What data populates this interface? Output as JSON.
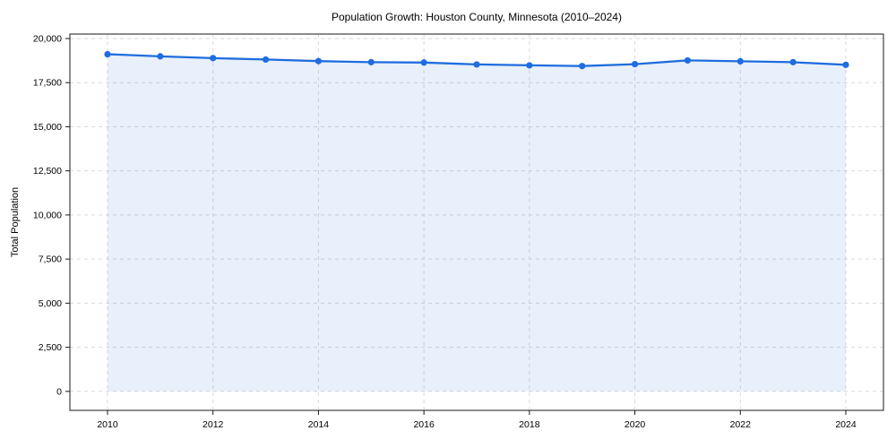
{
  "chart_data": {
    "type": "area",
    "title": "Population Growth: Houston County, Minnesota (2010–2024)",
    "xlabel": "",
    "ylabel": "Total Population",
    "series_name": "Total Population",
    "x": [
      2010,
      2011,
      2012,
      2013,
      2014,
      2015,
      2016,
      2017,
      2018,
      2019,
      2020,
      2021,
      2022,
      2023,
      2024
    ],
    "values": [
      19110,
      18990,
      18890,
      18810,
      18720,
      18660,
      18640,
      18530,
      18480,
      18440,
      18550,
      18760,
      18710,
      18660,
      18510
    ],
    "xticks": [
      2010,
      2012,
      2014,
      2016,
      2018,
      2020,
      2022,
      2024
    ],
    "xtick_labels": [
      "2010",
      "2012",
      "2014",
      "2016",
      "2018",
      "2020",
      "2022",
      "2024"
    ],
    "yticks": [
      0,
      2500,
      5000,
      7500,
      10000,
      12500,
      15000,
      17500,
      20000
    ],
    "ytick_labels": [
      "0",
      "2,500",
      "5,000",
      "7,500",
      "10,000",
      "12,500",
      "15,000",
      "17,500",
      "20,000"
    ],
    "ylim": [
      0,
      20000
    ],
    "xlim": [
      2010,
      2024
    ],
    "grid": true,
    "grid_style": "dashed",
    "legend": false,
    "colors": {
      "line": "#1f6dde",
      "marker": "#1f6dde",
      "area_fill": "#1f6dde",
      "area_opacity": 0.1,
      "grid": "#d9d9d9",
      "spine": "#1a1a1a",
      "tick_text": "#000000",
      "background": "#ffffff"
    }
  }
}
